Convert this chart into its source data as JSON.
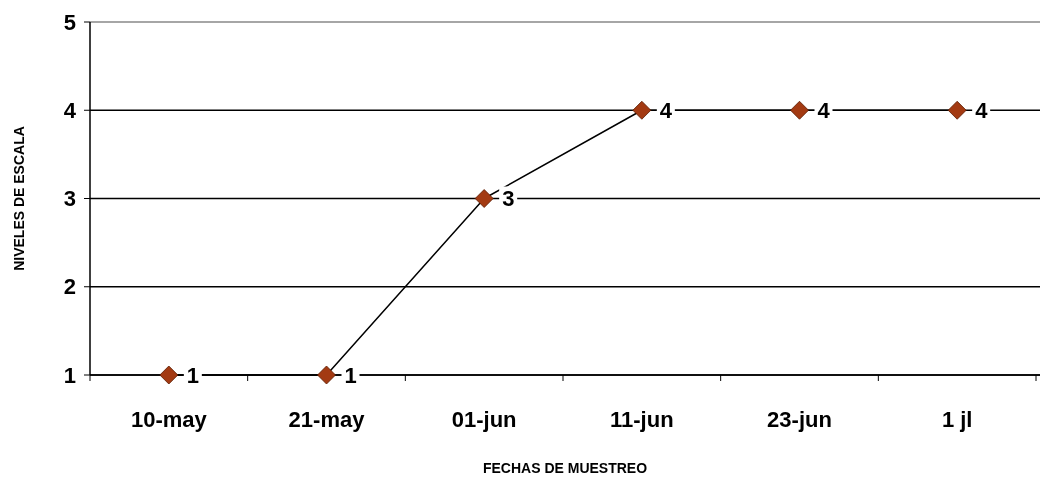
{
  "chart_data": {
    "type": "line",
    "xlabel": "FECHAS DE MUESTREO",
    "ylabel": "NIVELES DE ESCALA",
    "categories": [
      "10-may",
      "21-may",
      "01-jun",
      "11-jun",
      "23-jun",
      "1 jl"
    ],
    "series": [
      {
        "color": "#a33a12",
        "values": [
          1,
          1,
          3,
          4,
          4,
          4
        ]
      }
    ],
    "ylim": [
      1,
      5
    ],
    "yticks": [
      1,
      2,
      3,
      4,
      5
    ],
    "grid": "y",
    "marker": "diamond",
    "line_style": "solid",
    "data_labels": true
  }
}
